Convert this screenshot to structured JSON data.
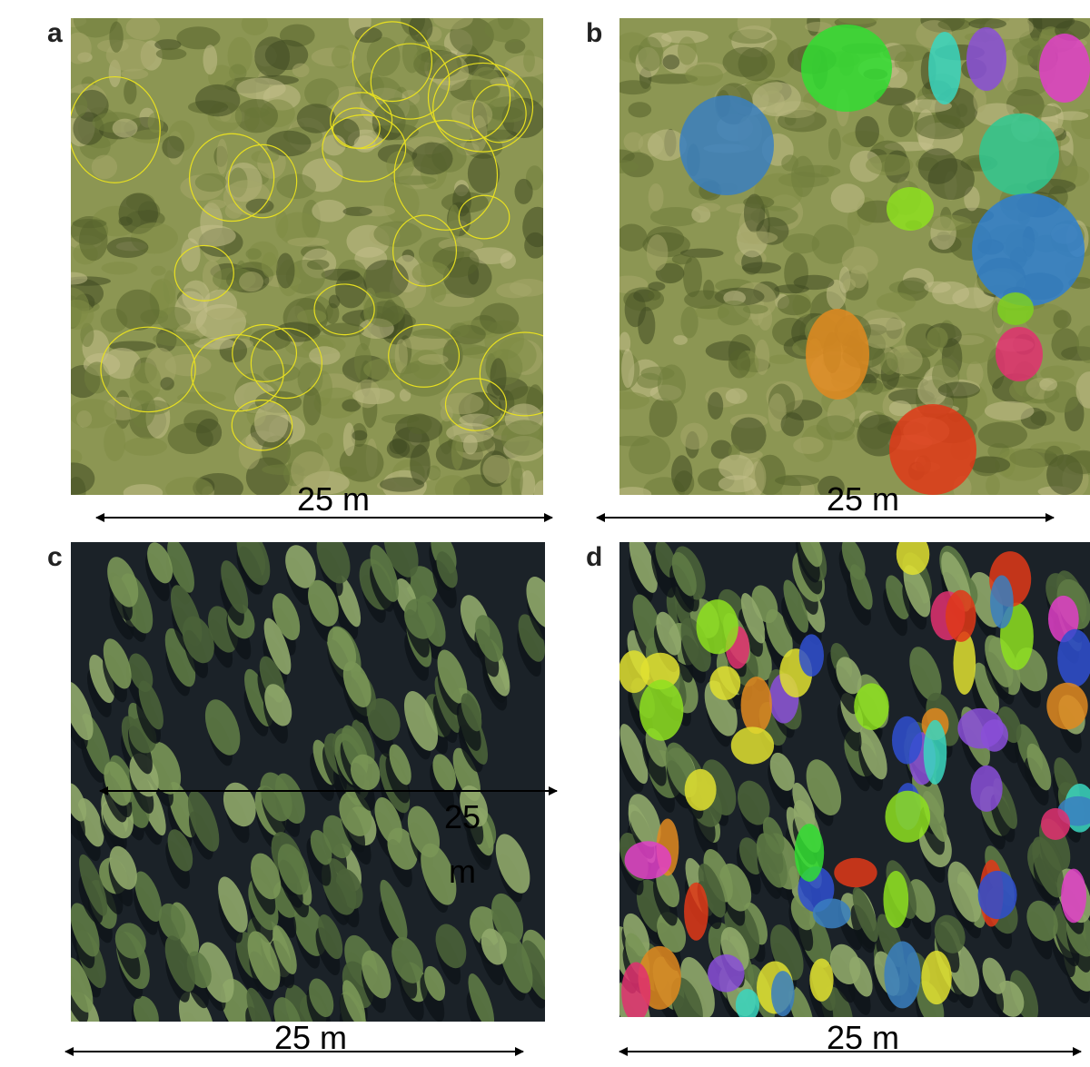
{
  "panels": [
    {
      "letter": "a",
      "scale_label": "25 m"
    },
    {
      "letter": "b",
      "scale_label": "25 m"
    },
    {
      "letter": "c",
      "scale_label": "25 m",
      "inner_scale_label": "25 m"
    },
    {
      "letter": "d",
      "scale_label": "25 m"
    }
  ]
}
